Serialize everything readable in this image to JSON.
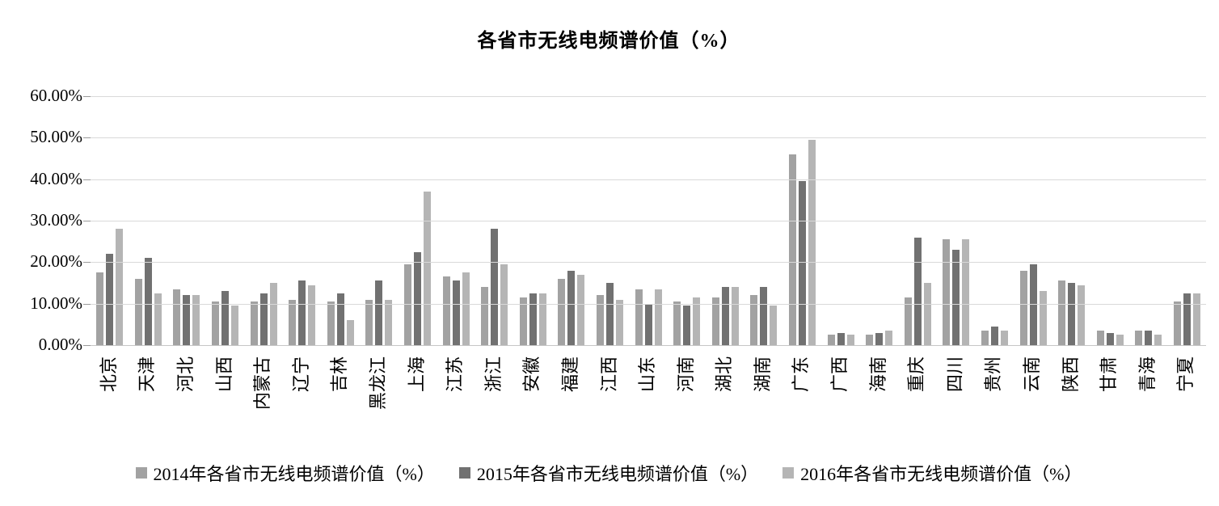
{
  "title": "各省市无线电频谱价值（%）",
  "colors": {
    "s2014": "#a2a2a2",
    "s2015": "#717171",
    "s2016": "#b5b5b5",
    "gridline": "#d9d9d9",
    "axis": "#c6c6c6"
  },
  "y_axis": {
    "ticks": [
      "60.00%",
      "50.00%",
      "40.00%",
      "30.00%",
      "20.00%",
      "10.00%",
      "0.00%"
    ],
    "max": 60
  },
  "legend": [
    {
      "label": "2014年各省市无线电频谱价值（%）",
      "color_key": "s2014"
    },
    {
      "label": "2015年各省市无线电频谱价值（%）",
      "color_key": "s2015"
    },
    {
      "label": "2016年各省市无线电频谱价值（%）",
      "color_key": "s2016"
    }
  ],
  "chart_data": {
    "type": "bar",
    "title": "各省市无线电频谱价值（%）",
    "xlabel": "",
    "ylabel": "",
    "ylim": [
      0,
      60
    ],
    "grid": true,
    "legend_position": "bottom",
    "categories": [
      "北京",
      "天津",
      "河北",
      "山西",
      "内蒙古",
      "辽宁",
      "吉林",
      "黑龙江",
      "上海",
      "江苏",
      "浙江",
      "安徽",
      "福建",
      "江西",
      "山东",
      "河南",
      "湖北",
      "湖南",
      "广东",
      "广西",
      "海南",
      "重庆",
      "四川",
      "贵州",
      "云南",
      "陕西",
      "甘肃",
      "青海",
      "宁夏"
    ],
    "series": [
      {
        "name": "2014年各省市无线电频谱价值（%）",
        "color_key": "s2014",
        "values": [
          17.5,
          16,
          13.5,
          10.5,
          10.5,
          11,
          10.5,
          11,
          19.5,
          16.5,
          14,
          11.5,
          16,
          12,
          13.5,
          10.5,
          11.5,
          12,
          46,
          2.5,
          2.5,
          11.5,
          25.5,
          3.5,
          18,
          15.5,
          3.5,
          3.5,
          10.5
        ]
      },
      {
        "name": "2015年各省市无线电频谱价值（%）",
        "color_key": "s2015",
        "values": [
          22,
          21,
          12,
          13,
          12.5,
          15.5,
          12.5,
          15.5,
          22.5,
          15.5,
          28,
          12.5,
          18,
          15,
          10,
          9.5,
          14,
          14,
          39.5,
          3,
          3,
          26,
          23,
          4.5,
          19.5,
          15,
          3,
          3.5,
          12.5
        ]
      },
      {
        "name": "2016年各省市无线电频谱价值（%）",
        "color_key": "s2016",
        "values": [
          28,
          12.5,
          12,
          9.5,
          15,
          14.5,
          6,
          11,
          37,
          17.5,
          19.5,
          12.5,
          17,
          11,
          13.5,
          11.5,
          14,
          9.5,
          49.5,
          2.5,
          3.5,
          15,
          25.5,
          3.5,
          13,
          14.5,
          2.5,
          2.5,
          12.5
        ]
      }
    ]
  }
}
